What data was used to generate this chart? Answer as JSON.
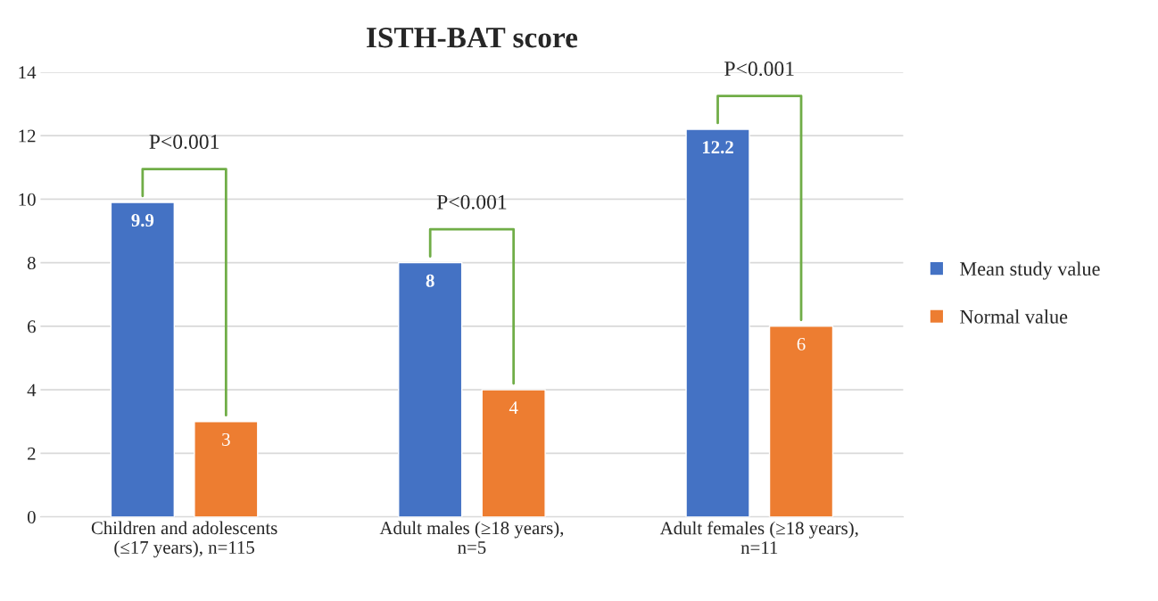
{
  "chart_data": {
    "type": "bar",
    "title": "ISTH-BAT score",
    "categories": [
      "Children and adolescents\n(≤17 years), n=115",
      "Adult males (≥18 years),\nn=5",
      "Adult females (≥18 years),\nn=11"
    ],
    "series": [
      {
        "name": "Mean study value",
        "color": "#4472c4",
        "values": [
          9.9,
          8,
          12.2
        ]
      },
      {
        "name": "Normal value",
        "color": "#ed7d31",
        "values": [
          3,
          4,
          6
        ]
      }
    ],
    "ylim": [
      0,
      14
    ],
    "yticks": [
      0,
      2,
      4,
      6,
      8,
      10,
      12,
      14
    ],
    "grid": "y",
    "legend": "right",
    "data_labels": true,
    "annotations": [
      "P<0.001",
      "P<0.001",
      "P<0.001"
    ]
  }
}
